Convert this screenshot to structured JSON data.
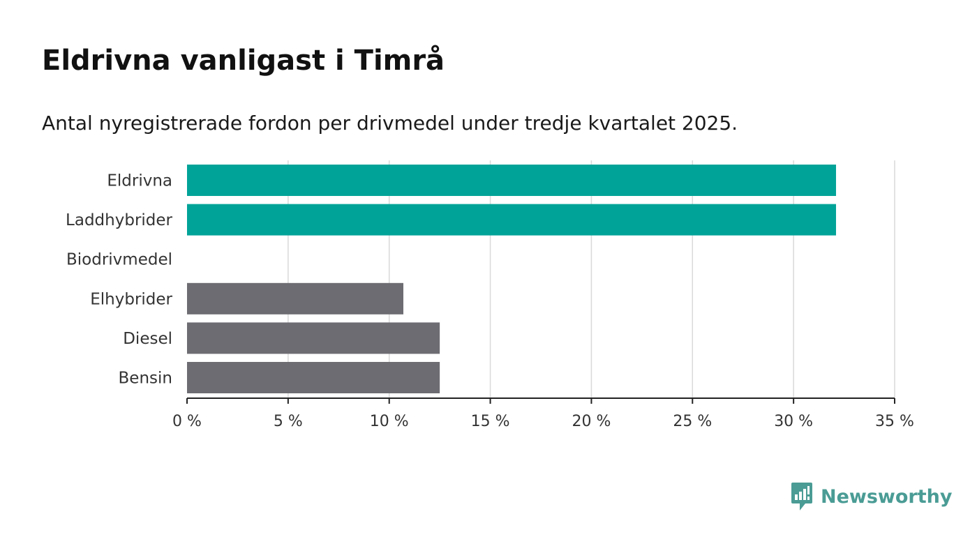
{
  "title": "Eldrivna vanligast i Timrå",
  "subtitle": "Antal nyregistrerade fordon per drivmedel under tredje kvartalet 2025.",
  "brand": {
    "name": "Newsworthy",
    "icon": "newsworthy-logo-icon",
    "color": "#4a9c95"
  },
  "chart_data": {
    "type": "bar",
    "orientation": "horizontal",
    "categories": [
      "Eldrivna",
      "Laddhybrider",
      "Biodrivmedel",
      "Elhybrider",
      "Diesel",
      "Bensin"
    ],
    "values": [
      32.1,
      32.1,
      0,
      10.7,
      12.5,
      12.5
    ],
    "bar_colors": [
      "#00a398",
      "#00a398",
      "#00a398",
      "#6d6c72",
      "#6d6c72",
      "#6d6c72"
    ],
    "xlim": [
      0,
      35
    ],
    "x_ticks": [
      0,
      5,
      10,
      15,
      20,
      25,
      30,
      35
    ],
    "x_tick_labels": [
      "0 %",
      "5 %",
      "10 %",
      "15 %",
      "20 %",
      "25 %",
      "30 %",
      "35 %"
    ],
    "xlabel": "",
    "ylabel": "",
    "grid": true,
    "colors": {
      "grid": "#d9d9d9",
      "axis": "#222222",
      "label": "#333333"
    }
  }
}
